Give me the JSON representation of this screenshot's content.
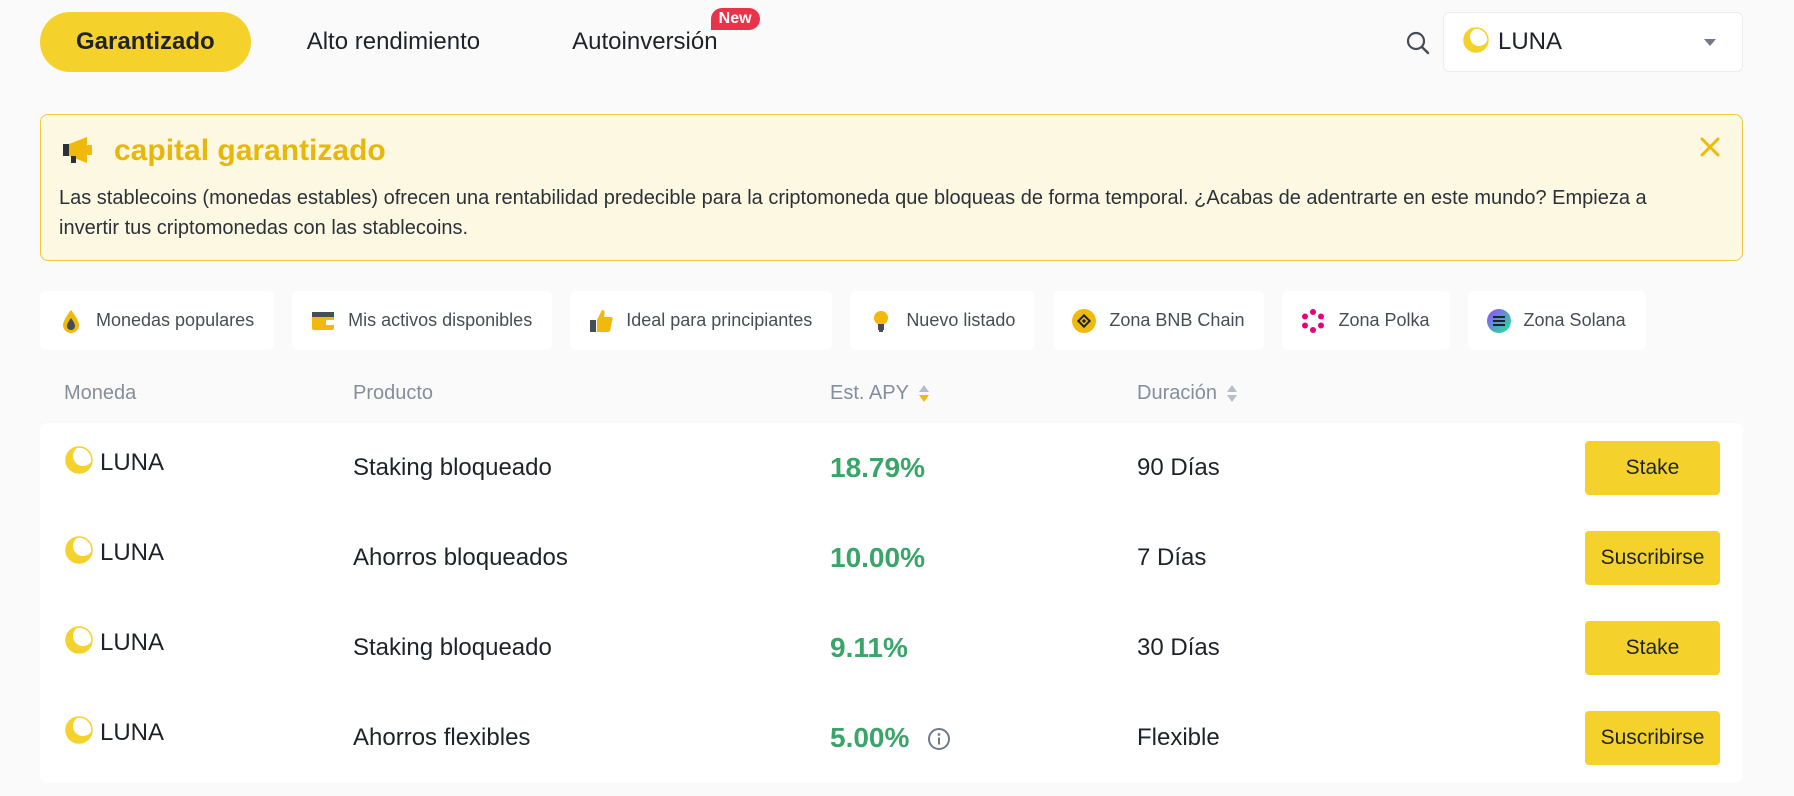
{
  "tabs": [
    {
      "label": "Garantizado",
      "active": true
    },
    {
      "label": "Alto rendimiento",
      "active": false
    },
    {
      "label": "Autoinversión",
      "active": false,
      "badge": "New"
    }
  ],
  "coin_selector": {
    "value": "LUNA",
    "icon": "luna-coin-icon"
  },
  "banner": {
    "title": "capital garantizado",
    "text": "Las stablecoins (monedas estables) ofrecen una rentabilidad predecible para la criptomoneda que bloqueas de forma temporal. ¿Acabas de adentrarte en este mundo? Empieza a invertir tus criptomonedas con las stablecoins."
  },
  "filters": [
    {
      "label": "Monedas populares",
      "icon": "drop-icon"
    },
    {
      "label": "Mis activos disponibles",
      "icon": "wallet-icon"
    },
    {
      "label": "Ideal para principiantes",
      "icon": "thumbs-up-icon"
    },
    {
      "label": "Nuevo listado",
      "icon": "lightbulb-icon"
    },
    {
      "label": "Zona BNB Chain",
      "icon": "bnb-icon"
    },
    {
      "label": "Zona Polka",
      "icon": "polkadot-icon"
    },
    {
      "label": "Zona Solana",
      "icon": "solana-icon"
    }
  ],
  "table": {
    "headers": {
      "coin": "Moneda",
      "product": "Producto",
      "apy": "Est. APY",
      "duration": "Duración"
    },
    "rows": [
      {
        "coin": "LUNA",
        "product": "Staking bloqueado",
        "apy": "18.79%",
        "duration": "90 Días",
        "action": "Stake",
        "info": false
      },
      {
        "coin": "LUNA",
        "product": "Ahorros bloqueados",
        "apy": "10.00%",
        "duration": "7 Días",
        "action": "Suscribirse",
        "info": false
      },
      {
        "coin": "LUNA",
        "product": "Staking bloqueado",
        "apy": "9.11%",
        "duration": "30 Días",
        "action": "Stake",
        "info": false
      },
      {
        "coin": "LUNA",
        "product": "Ahorros flexibles",
        "apy": "5.00%",
        "duration": "Flexible",
        "action": "Suscribirse",
        "info": true
      }
    ]
  },
  "colors": {
    "accent": "#f5d22b",
    "apy_green": "#3aa569",
    "banner_bg": "#fdf8e1",
    "badge_red": "#e8334a"
  }
}
